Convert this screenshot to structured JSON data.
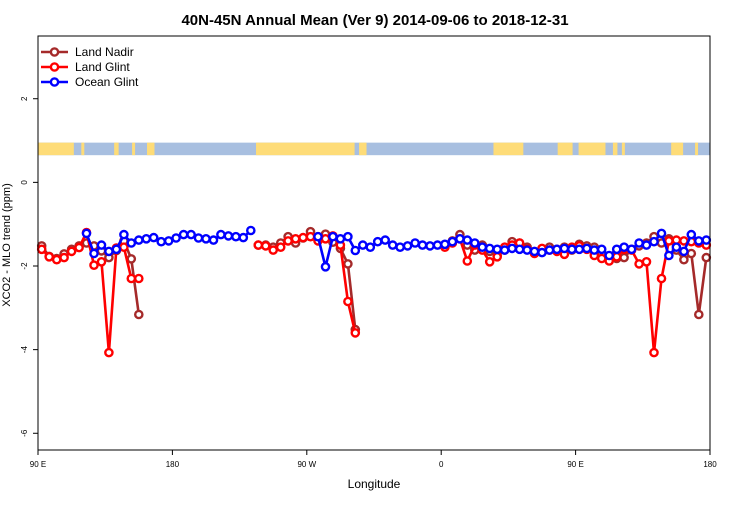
{
  "chart_data": {
    "type": "line",
    "title": "40N-45N Annual Mean (Ver 9)   2014-09-06 to 2018-12-31",
    "xlabel": "Longitude",
    "ylabel": "XCO2 - MLO trend (ppm)",
    "x_ticks": [
      {
        "value": 90,
        "label": "90 E"
      },
      {
        "value": 180,
        "label": "180"
      },
      {
        "value": 270,
        "label": "90 W"
      },
      {
        "value": 360,
        "label": "0"
      },
      {
        "value": 450,
        "label": "90 E"
      },
      {
        "value": 540,
        "label": "180"
      }
    ],
    "y_ticks": [
      {
        "value": 2,
        "label": "2"
      },
      {
        "value": 0,
        "label": "0"
      },
      {
        "value": -2,
        "label": "-2"
      },
      {
        "value": -4,
        "label": "-4"
      },
      {
        "value": -6,
        "label": "-6"
      }
    ],
    "xlim": [
      90,
      540
    ],
    "ylim": [
      -6.4,
      3.5
    ],
    "grid": false,
    "legend_position": "top-left",
    "surface_mask": {
      "description_colors": {
        "land": "#fedc78",
        "ocean": "#a8bfe0"
      },
      "y_range": [
        0.65,
        0.95
      ],
      "land_segments": [
        [
          90,
          114
        ],
        [
          119,
          121
        ],
        [
          141,
          144
        ],
        [
          153,
          155
        ],
        [
          163,
          168
        ],
        [
          236,
          302
        ],
        [
          305,
          310
        ],
        [
          395,
          415
        ],
        [
          438,
          448
        ],
        [
          452,
          470
        ],
        [
          475,
          478
        ],
        [
          481,
          483
        ],
        [
          514,
          522
        ],
        [
          530,
          532
        ]
      ]
    },
    "series": [
      {
        "name": "Land Nadir",
        "color": "#a52a2a",
        "segments": [
          {
            "x": [
              92.5,
              97.5,
              102.5,
              107.5,
              112.5,
              117.5,
              122.5,
              127.5,
              132.5,
              137.5,
              142.5,
              147.5,
              152.5,
              157.5
            ],
            "y": [
              -1.52,
              -1.77,
              -1.82,
              -1.71,
              -1.6,
              -1.52,
              -1.45,
              -1.52,
              -1.64,
              -1.8,
              -1.63,
              -1.4,
              -1.83,
              -3.16
            ]
          },
          {
            "x": [
              237.5,
              242.5,
              247.5,
              252.5,
              257.5,
              262.5,
              267.5,
              272.5,
              277.5,
              282.5,
              287.5,
              292.5,
              297.5,
              302.5
            ],
            "y": [
              -1.5,
              -1.5,
              -1.55,
              -1.45,
              -1.3,
              -1.45,
              -1.33,
              -1.18,
              -1.3,
              -1.24,
              -1.43,
              -1.58,
              -1.95,
              -3.52
            ]
          },
          {
            "x": [
              362.5,
              367.5,
              372.5,
              377.5,
              382.5,
              387.5,
              392.5,
              397.5,
              402.5,
              407.5,
              412.5,
              417.5,
              422.5,
              427.5,
              432.5,
              437.5,
              442.5,
              447.5,
              452.5,
              457.5,
              462.5,
              467.5,
              472.5,
              477.5,
              482.5,
              487.5,
              492.5,
              497.5,
              502.5,
              507.5,
              512.5,
              517.5,
              522.5,
              527.5,
              532.5,
              537.5
            ],
            "y": [
              -1.52,
              -1.4,
              -1.25,
              -1.5,
              -1.62,
              -1.5,
              -1.65,
              -1.75,
              -1.62,
              -1.42,
              -1.45,
              -1.55,
              -1.68,
              -1.62,
              -1.55,
              -1.6,
              -1.55,
              -1.62,
              -1.48,
              -1.52,
              -1.55,
              -1.7,
              -1.76,
              -1.82,
              -1.8,
              -1.6,
              -1.52,
              -1.45,
              -1.3,
              -1.45,
              -1.35,
              -1.62,
              -1.85,
              -1.7,
              -3.16,
              -1.8
            ]
          }
        ]
      },
      {
        "name": "Land Glint",
        "color": "#ff0000",
        "segments": [
          {
            "x": [
              92.5,
              97.5,
              102.5,
              107.5,
              112.5,
              117.5,
              122.5,
              127.5,
              132.5,
              137.5,
              142.5,
              147.5,
              152.5,
              157.5
            ],
            "y": [
              -1.6,
              -1.78,
              -1.85,
              -1.8,
              -1.65,
              -1.56,
              -1.2,
              -1.98,
              -1.9,
              -4.07,
              -1.57,
              -1.55,
              -2.3,
              -2.3
            ]
          },
          {
            "x": [
              237.5,
              242.5,
              247.5,
              252.5,
              257.5,
              262.5,
              267.5,
              272.5,
              277.5,
              282.5,
              287.5,
              292.5,
              297.5,
              302.5
            ],
            "y": [
              -1.5,
              -1.52,
              -1.62,
              -1.55,
              -1.4,
              -1.35,
              -1.32,
              -1.3,
              -1.4,
              -1.35,
              -1.28,
              -1.5,
              -2.85,
              -3.6
            ]
          },
          {
            "x": [
              362.5,
              367.5,
              372.5,
              377.5,
              382.5,
              387.5,
              392.5,
              397.5,
              402.5,
              407.5,
              412.5,
              417.5,
              422.5,
              427.5,
              432.5,
              437.5,
              442.5,
              447.5,
              452.5,
              457.5,
              462.5,
              467.5,
              472.5,
              477.5,
              482.5,
              487.5,
              492.5,
              497.5,
              502.5,
              507.5,
              512.5,
              517.5,
              522.5,
              527.5,
              532.5,
              537.5
            ],
            "y": [
              -1.55,
              -1.45,
              -1.35,
              -1.88,
              -1.5,
              -1.62,
              -1.9,
              -1.78,
              -1.55,
              -1.5,
              -1.45,
              -1.6,
              -1.7,
              -1.58,
              -1.62,
              -1.65,
              -1.72,
              -1.55,
              -1.52,
              -1.6,
              -1.75,
              -1.82,
              -1.88,
              -1.78,
              -1.6,
              -1.62,
              -1.95,
              -1.9,
              -4.07,
              -2.3,
              -1.4,
              -1.38,
              -1.4,
              -1.42,
              -1.45,
              -1.5
            ]
          }
        ]
      },
      {
        "name": "Ocean Glint",
        "color": "#0000ff",
        "segments": [
          {
            "x": [
              122.5,
              127.5,
              132.5,
              137.5,
              142.5,
              147.5,
              152.5,
              157.5,
              162.5,
              167.5,
              172.5,
              177.5,
              182.5,
              187.5,
              192.5,
              197.5,
              202.5,
              207.5,
              212.5,
              217.5,
              222.5,
              227.5,
              232.5
            ],
            "y": [
              -1.22,
              -1.7,
              -1.5,
              -1.65,
              -1.6,
              -1.25,
              -1.45,
              -1.38,
              -1.35,
              -1.32,
              -1.42,
              -1.4,
              -1.33,
              -1.25,
              -1.25,
              -1.33,
              -1.35,
              -1.38,
              -1.25,
              -1.28,
              -1.3,
              -1.32,
              -1.15
            ]
          },
          {
            "x": [
              277.5,
              282.5,
              287.5,
              292.5,
              297.5,
              302.5,
              307.5,
              312.5,
              317.5,
              322.5,
              327.5,
              332.5,
              337.5,
              342.5,
              347.5,
              352.5,
              357.5,
              362.5,
              367.5,
              372.5,
              377.5,
              382.5,
              387.5,
              392.5,
              397.5,
              402.5,
              407.5,
              412.5,
              417.5,
              422.5,
              427.5,
              432.5,
              437.5,
              442.5,
              447.5,
              452.5,
              457.5,
              462.5,
              467.5,
              472.5,
              477.5,
              482.5,
              487.5,
              492.5,
              497.5,
              502.5,
              507.5,
              512.5,
              517.5,
              522.5,
              527.5,
              532.5,
              537.5
            ],
            "y": [
              -1.3,
              -2.02,
              -1.3,
              -1.35,
              -1.3,
              -1.63,
              -1.5,
              -1.55,
              -1.42,
              -1.38,
              -1.5,
              -1.55,
              -1.52,
              -1.45,
              -1.5,
              -1.52,
              -1.5,
              -1.48,
              -1.42,
              -1.35,
              -1.38,
              -1.45,
              -1.55,
              -1.58,
              -1.6,
              -1.62,
              -1.58,
              -1.6,
              -1.62,
              -1.65,
              -1.68,
              -1.62,
              -1.6,
              -1.58,
              -1.6,
              -1.6,
              -1.58,
              -1.62,
              -1.6,
              -1.75,
              -1.6,
              -1.55,
              -1.6,
              -1.45,
              -1.5,
              -1.42,
              -1.22,
              -1.75,
              -1.55,
              -1.65,
              -1.25,
              -1.4,
              -1.38
            ]
          }
        ]
      }
    ]
  }
}
